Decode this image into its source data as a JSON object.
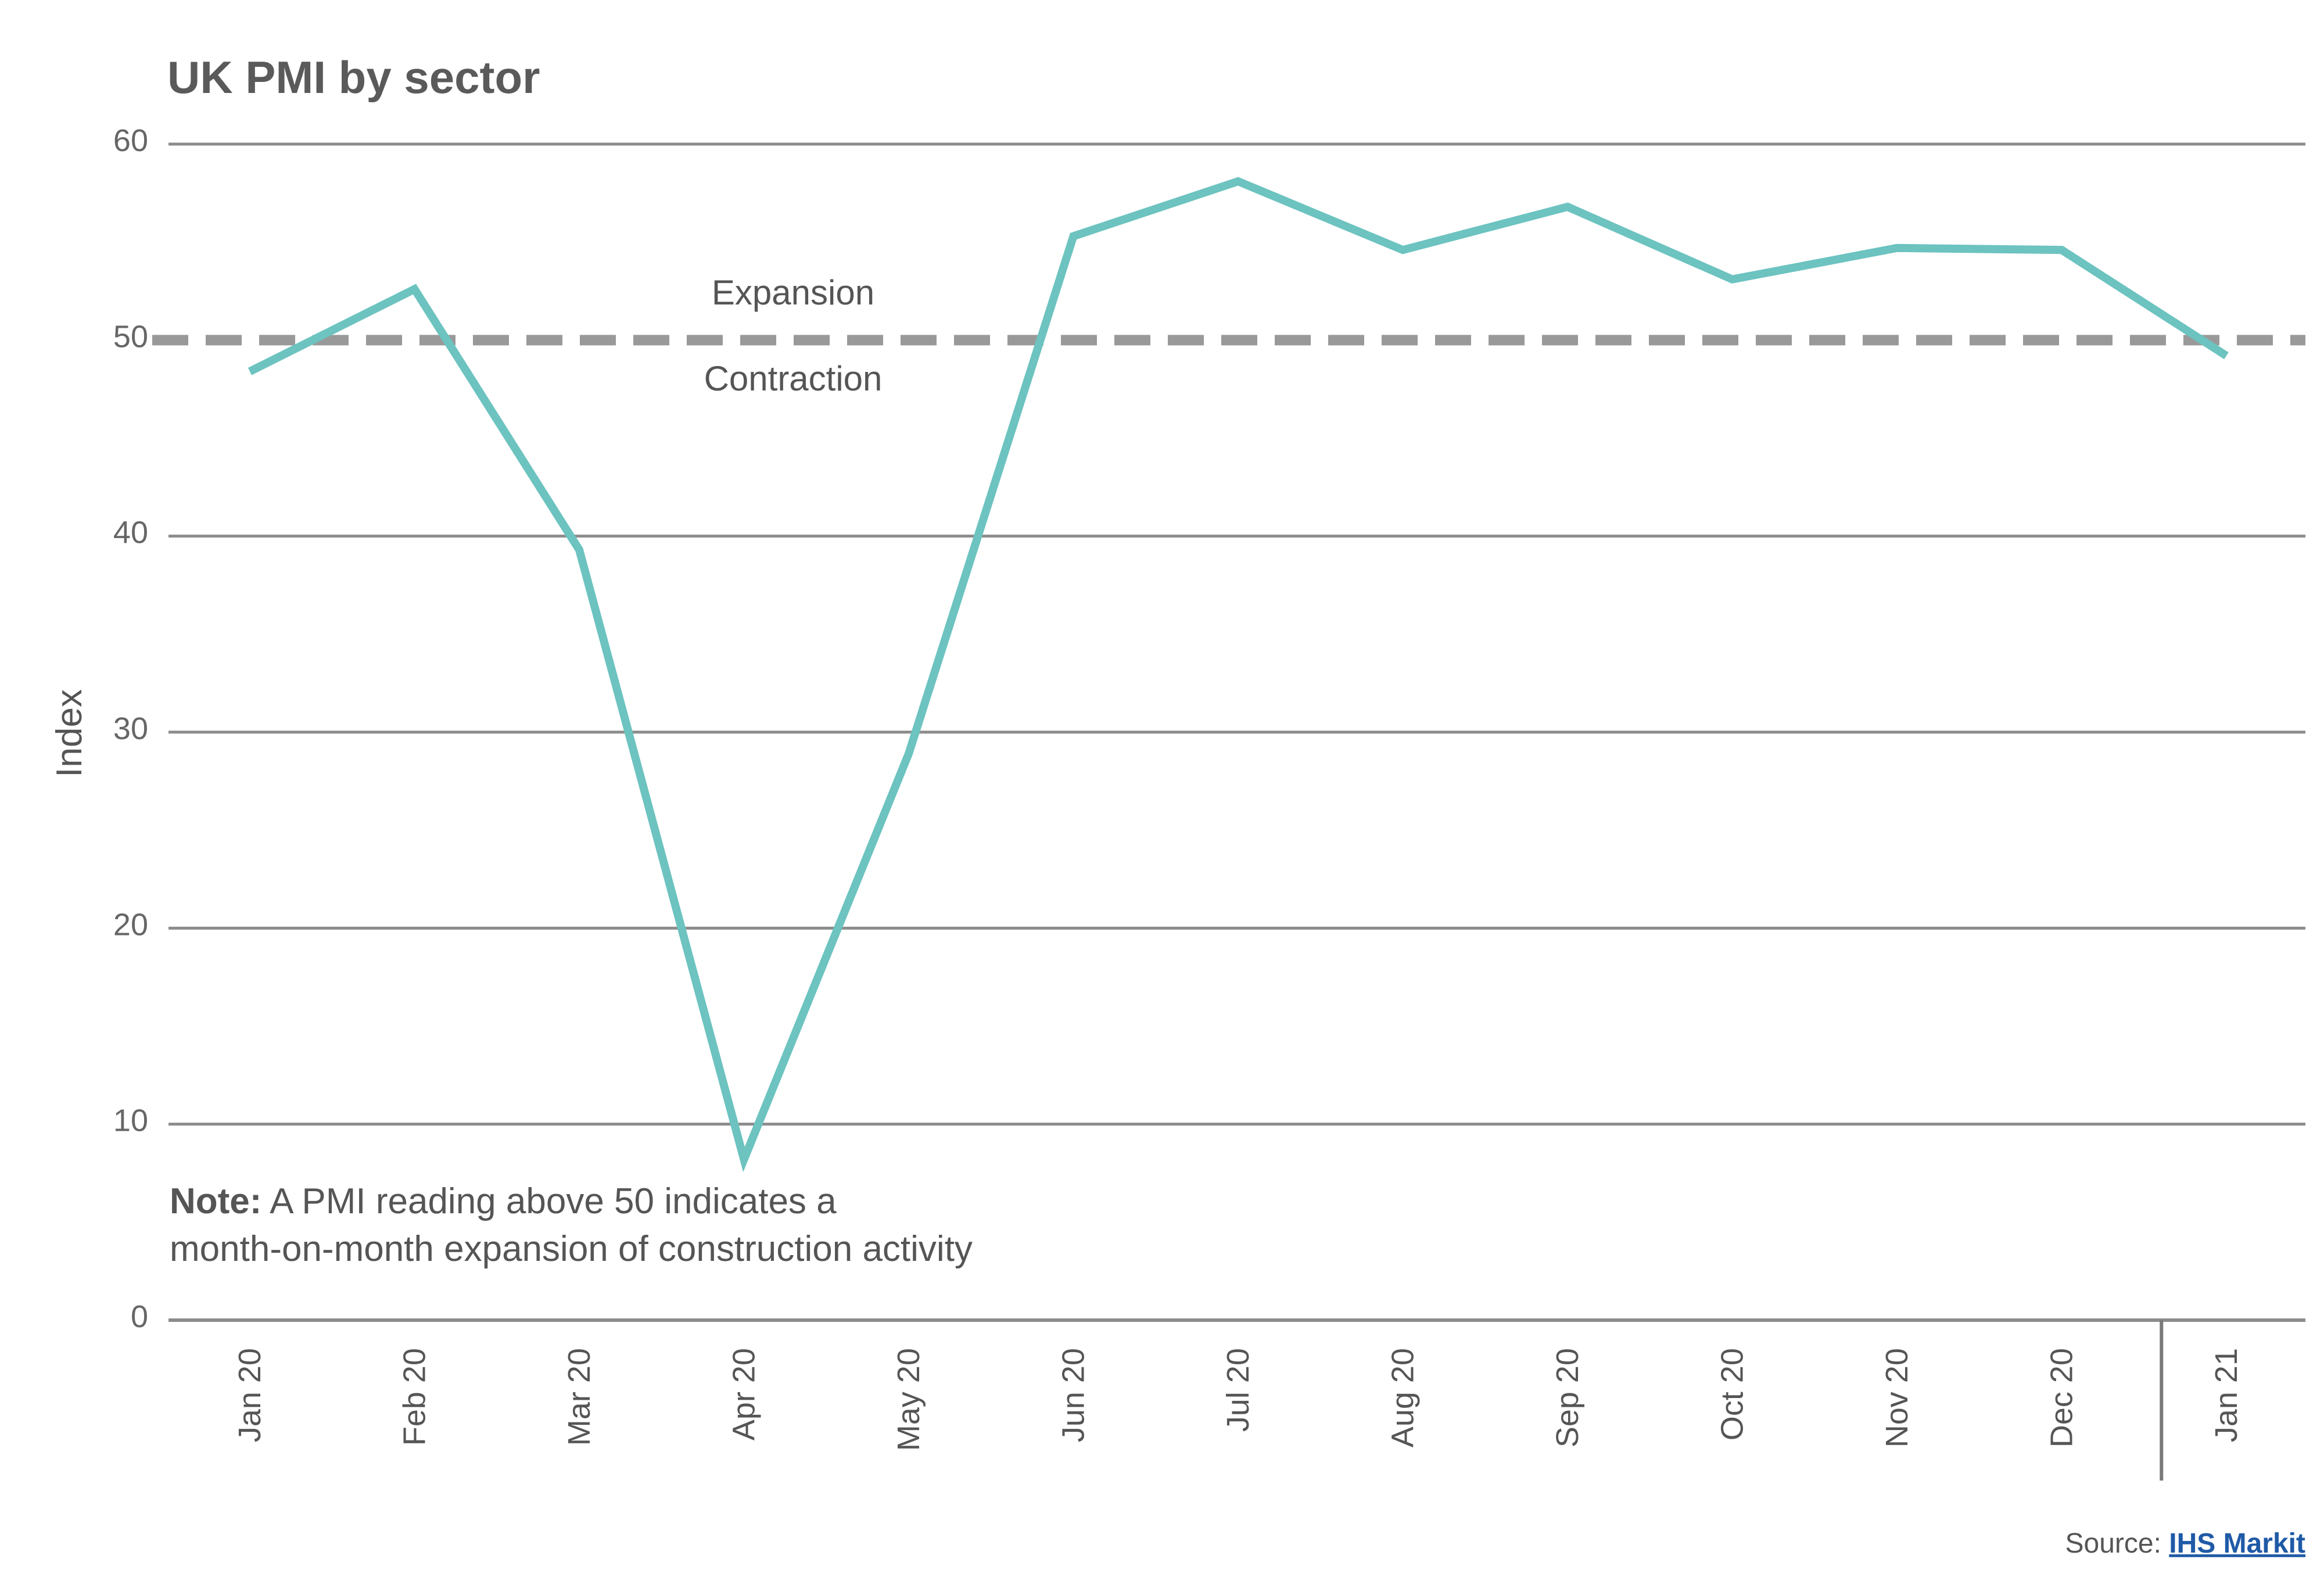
{
  "chart_data": {
    "type": "line",
    "title": "UK PMI by sector",
    "xlabel": "",
    "ylabel": "Index",
    "ylim": [
      0,
      60
    ],
    "yticks": [
      0,
      10,
      20,
      30,
      40,
      50,
      60
    ],
    "categories": [
      "Jan 20",
      "Feb 20",
      "Mar 20",
      "Apr 20",
      "May 20",
      "Jun 20",
      "Jul 20",
      "Aug 20",
      "Sep 20",
      "Oct 20",
      "Nov 20",
      "Dec 20",
      "Jan 21"
    ],
    "series": [
      {
        "values": [
          48.4,
          52.6,
          39.3,
          8.2,
          28.9,
          55.3,
          58.1,
          54.6,
          56.8,
          53.1,
          54.7,
          54.6,
          49.2
        ],
        "color": "#6cc3c0"
      }
    ],
    "reference_line": {
      "value": 50,
      "above_label": "Expansion",
      "below_label": "Contraction",
      "color": "#999999",
      "style": "dashed"
    },
    "divider_before": "Jan 21",
    "grid": true,
    "note": {
      "label": "Note:",
      "line1": " A PMI reading above 50 indicates a",
      "line2": "month-on-month expansion of construction activity"
    },
    "source": {
      "label": "Source: ",
      "link_text": "IHS Markit"
    }
  }
}
